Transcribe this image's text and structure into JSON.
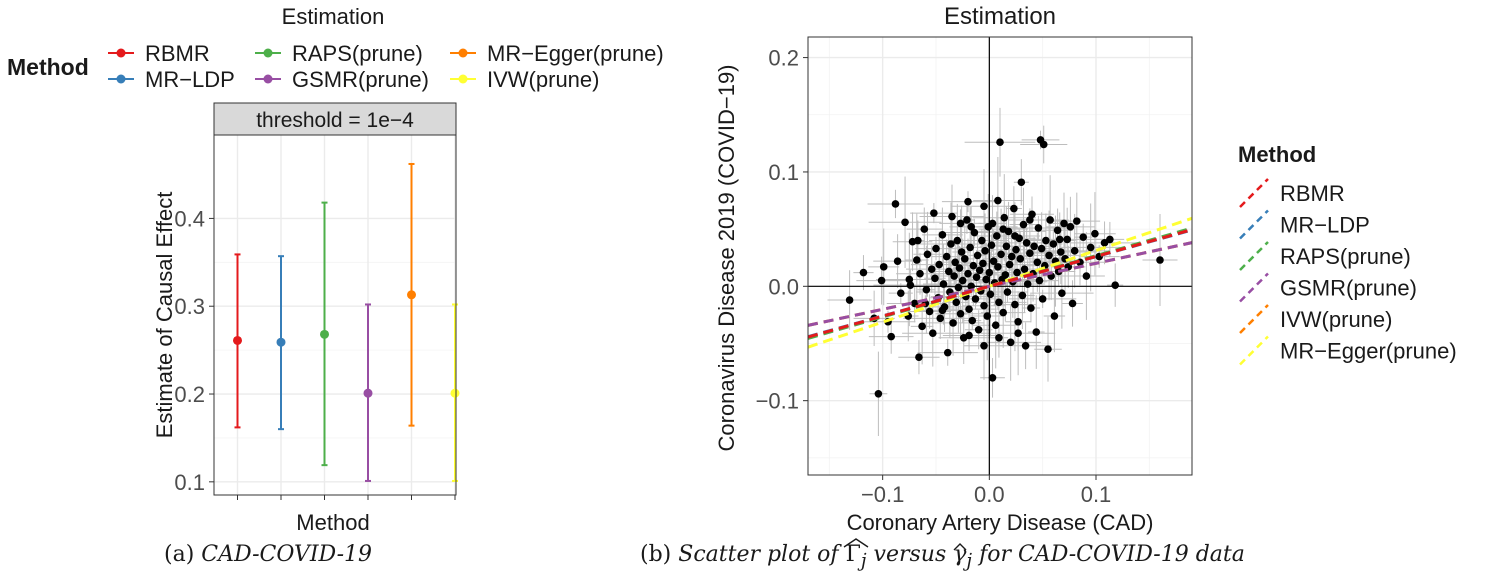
{
  "chart_data": [
    {
      "type": "errorbar",
      "title": "Estimation",
      "facet_label": "threshold = 1e−4",
      "ylabel": "Estimate of Causal Effect",
      "xlabel": "Method",
      "ylim": [
        0.085,
        0.495
      ],
      "yticks": [
        0.1,
        0.2,
        0.3,
        0.4
      ],
      "yticklabels": [
        "0.1",
        "0.2",
        "0.3",
        "0.4"
      ],
      "grid": true,
      "legend": {
        "title": "Method",
        "placement": "top",
        "entries": [
          {
            "label": "RBMR",
            "color": "#e41a1c"
          },
          {
            "label": "MR−LDP",
            "color": "#377eb8"
          },
          {
            "label": "RAPS(prune)",
            "color": "#4daf4a"
          },
          {
            "label": "GSMR(prune)",
            "color": "#984ea3"
          },
          {
            "label": "MR−Egger(prune)",
            "color": "#ff7f00"
          },
          {
            "label": "IVW(prune)",
            "color": "#ffff33"
          }
        ]
      },
      "points": [
        {
          "method": "RBMR",
          "estimate": 0.261,
          "lower": 0.162,
          "upper": 0.359,
          "color": "#e41a1c"
        },
        {
          "method": "MR−LDP",
          "estimate": 0.259,
          "lower": 0.16,
          "upper": 0.357,
          "color": "#377eb8"
        },
        {
          "method": "RAPS(prune)",
          "estimate": 0.268,
          "lower": 0.119,
          "upper": 0.418,
          "color": "#4daf4a"
        },
        {
          "method": "GSMR(prune)",
          "estimate": 0.201,
          "lower": 0.101,
          "upper": 0.302,
          "color": "#984ea3"
        },
        {
          "method": "MR−Egger(prune)",
          "estimate": 0.313,
          "lower": 0.164,
          "upper": 0.462,
          "color": "#ff7f00"
        },
        {
          "method": "IVW(prune)",
          "estimate": 0.201,
          "lower": 0.101,
          "upper": 0.302,
          "color": "#ffff33"
        }
      ]
    },
    {
      "type": "scatter",
      "title": "Estimation",
      "xlabel": "Coronary Artery Disease (CAD)",
      "ylabel": "Coronavirus Disease 2019 (COVID−19)",
      "xlim": [
        -0.17,
        0.19
      ],
      "ylim": [
        -0.165,
        0.218
      ],
      "xticks": [
        -0.1,
        0.0,
        0.1
      ],
      "xticklabels": [
        "−0.1",
        "0.0",
        "0.1"
      ],
      "yticks": [
        -0.1,
        0.0,
        0.1,
        0.2
      ],
      "yticklabels": [
        "−0.1",
        "0.0",
        "0.1",
        "0.2"
      ],
      "grid": true,
      "legend": {
        "title": "Method",
        "placement": "right"
      },
      "lines": [
        {
          "name": "RBMR",
          "slope": 0.261,
          "color": "#e41a1c"
        },
        {
          "name": "MR−LDP",
          "slope": 0.259,
          "color": "#377eb8"
        },
        {
          "name": "RAPS(prune)",
          "slope": 0.268,
          "color": "#4daf4a"
        },
        {
          "name": "GSMR(prune)",
          "slope": 0.201,
          "color": "#984ea3"
        },
        {
          "name": "IVW(prune)",
          "slope": 0.201,
          "intercept": 0.0,
          "color": "#ff7f00"
        },
        {
          "name": "MR−Egger(prune)",
          "slope": 0.313,
          "color": "#ffff33"
        }
      ],
      "points": [
        [
          -0.131,
          -0.012
        ],
        [
          -0.118,
          0.012
        ],
        [
          -0.108,
          -0.028
        ],
        [
          -0.104,
          -0.094
        ],
        [
          -0.101,
          0.005
        ],
        [
          -0.099,
          0.017
        ],
        [
          -0.095,
          -0.031
        ],
        [
          -0.092,
          -0.044
        ],
        [
          -0.088,
          0.072
        ],
        [
          -0.086,
          0.022
        ],
        [
          -0.083,
          -0.006
        ],
        [
          -0.079,
          0.056
        ],
        [
          -0.076,
          -0.026
        ],
        [
          -0.074,
          0.001
        ],
        [
          -0.072,
          0.039
        ],
        [
          -0.07,
          -0.015
        ],
        [
          -0.068,
          0.023
        ],
        [
          -0.066,
          -0.062
        ],
        [
          -0.065,
          0.011
        ],
        [
          -0.063,
          -0.035
        ],
        [
          -0.061,
          0.05
        ],
        [
          -0.059,
          -0.003
        ],
        [
          -0.058,
          0.028
        ],
        [
          -0.056,
          -0.022
        ],
        [
          -0.054,
          0.015
        ],
        [
          -0.053,
          -0.041
        ],
        [
          -0.051,
          0.007
        ],
        [
          -0.05,
          0.033
        ],
        [
          -0.048,
          -0.01
        ],
        [
          -0.047,
          0.019
        ],
        [
          -0.046,
          -0.028
        ],
        [
          -0.044,
          0.045
        ],
        [
          -0.043,
          0.002
        ],
        [
          -0.042,
          -0.018
        ],
        [
          -0.04,
          0.026
        ],
        [
          -0.039,
          -0.058
        ],
        [
          -0.038,
          0.013
        ],
        [
          -0.037,
          -0.005
        ],
        [
          -0.036,
          0.037
        ],
        [
          -0.034,
          -0.032
        ],
        [
          -0.033,
          0.009
        ],
        [
          -0.032,
          0.021
        ],
        [
          -0.031,
          -0.014
        ],
        [
          -0.03,
          0.04
        ],
        [
          -0.029,
          -0.001
        ],
        [
          -0.028,
          0.016
        ],
        [
          -0.027,
          -0.024
        ],
        [
          -0.026,
          0.03
        ],
        [
          -0.025,
          0.005
        ],
        [
          -0.024,
          -0.045
        ],
        [
          -0.023,
          0.024
        ],
        [
          -0.022,
          -0.009
        ],
        [
          -0.021,
          0.058
        ],
        [
          -0.02,
          0.011
        ],
        [
          -0.019,
          -0.02
        ],
        [
          -0.018,
          0.034
        ],
        [
          -0.017,
          0.0
        ],
        [
          -0.016,
          -0.03
        ],
        [
          -0.015,
          0.018
        ],
        [
          -0.014,
          0.047
        ],
        [
          -0.013,
          -0.011
        ],
        [
          -0.012,
          0.008
        ],
        [
          -0.011,
          0.027
        ],
        [
          -0.01,
          -0.038
        ],
        [
          -0.009,
          0.014
        ],
        [
          -0.008,
          -0.004
        ],
        [
          -0.007,
          0.04
        ],
        [
          -0.006,
          0.02
        ],
        [
          -0.005,
          -0.017
        ],
        [
          -0.004,
          0.031
        ],
        [
          -0.003,
          0.006
        ],
        [
          -0.002,
          -0.026
        ],
        [
          -0.001,
          0.052
        ],
        [
          0.0,
          0.012
        ],
        [
          0.001,
          -0.007
        ],
        [
          0.002,
          0.036
        ],
        [
          0.003,
          -0.08
        ],
        [
          0.004,
          0.022
        ],
        [
          0.005,
          0.003
        ],
        [
          0.006,
          -0.034
        ],
        [
          0.007,
          0.044
        ],
        [
          0.008,
          0.017
        ],
        [
          0.009,
          -0.014
        ],
        [
          0.01,
          0.126
        ],
        [
          0.011,
          0.028
        ],
        [
          0.012,
          0.006
        ],
        [
          0.013,
          -0.023
        ],
        [
          0.014,
          0.06
        ],
        [
          0.015,
          0.01
        ],
        [
          0.016,
          0.035
        ],
        [
          0.017,
          -0.005
        ],
        [
          0.018,
          0.048
        ],
        [
          0.019,
          0.019
        ],
        [
          0.02,
          -0.049
        ],
        [
          0.021,
          0.026
        ],
        [
          0.022,
          0.004
        ],
        [
          0.023,
          0.068
        ],
        [
          0.024,
          -0.016
        ],
        [
          0.025,
          0.032
        ],
        [
          0.026,
          0.012
        ],
        [
          0.027,
          -0.031
        ],
        [
          0.028,
          0.042
        ],
        [
          0.029,
          0.024
        ],
        [
          0.03,
          0.091
        ],
        [
          0.031,
          -0.008
        ],
        [
          0.032,
          0.054
        ],
        [
          0.033,
          0.015
        ],
        [
          0.034,
          -0.052
        ],
        [
          0.035,
          0.038
        ],
        [
          0.036,
          0.002
        ],
        [
          0.038,
          0.029
        ],
        [
          0.039,
          -0.019
        ],
        [
          0.04,
          0.063
        ],
        [
          0.041,
          0.011
        ],
        [
          0.042,
          0.035
        ],
        [
          0.044,
          -0.04
        ],
        [
          0.045,
          0.021
        ],
        [
          0.046,
          0.051
        ],
        [
          0.047,
          0.005
        ],
        [
          0.048,
          0.128
        ],
        [
          0.049,
          0.033
        ],
        [
          0.05,
          -0.011
        ],
        [
          0.051,
          0.124
        ],
        [
          0.052,
          0.018
        ],
        [
          0.053,
          0.04
        ],
        [
          0.055,
          -0.055
        ],
        [
          0.056,
          0.027
        ],
        [
          0.057,
          0.058
        ],
        [
          0.058,
          0.009
        ],
        [
          0.06,
          0.037
        ],
        [
          0.061,
          -0.026
        ],
        [
          0.062,
          0.022
        ],
        [
          0.064,
          0.049
        ],
        [
          0.065,
          0.013
        ],
        [
          0.067,
          0.03
        ],
        [
          0.068,
          -0.006
        ],
        [
          0.07,
          0.055
        ],
        [
          0.071,
          0.024
        ],
        [
          0.073,
          0.041
        ],
        [
          0.074,
          0.017
        ],
        [
          0.076,
          0.052
        ],
        [
          0.078,
          -0.015
        ],
        [
          0.08,
          0.031
        ],
        [
          0.082,
          0.057
        ],
        [
          0.085,
          0.021
        ],
        [
          0.088,
          0.043
        ],
        [
          0.091,
          0.009
        ],
        [
          0.095,
          0.034
        ],
        [
          0.099,
          0.046
        ],
        [
          0.103,
          0.026
        ],
        [
          0.108,
          0.038
        ],
        [
          0.113,
          0.041
        ],
        [
          0.118,
          0.001
        ],
        [
          0.16,
          0.023
        ],
        [
          -0.035,
          0.061
        ],
        [
          -0.052,
          0.064
        ],
        [
          -0.027,
          0.055
        ],
        [
          -0.017,
          0.052
        ],
        [
          0.003,
          0.055
        ],
        [
          0.013,
          0.05
        ],
        [
          0.024,
          0.044
        ],
        [
          0.038,
          0.058
        ],
        [
          0.066,
          0.041
        ],
        [
          -0.044,
          -0.021
        ],
        [
          -0.019,
          -0.043
        ],
        [
          0.009,
          -0.045
        ],
        [
          -0.005,
          -0.052
        ],
        [
          0.027,
          -0.041
        ],
        [
          -0.06,
          -0.015
        ],
        [
          -0.075,
          0.006
        ],
        [
          -0.005,
          0.07
        ],
        [
          0.008,
          0.075
        ],
        [
          -0.067,
          0.04
        ],
        [
          -0.02,
          0.074
        ]
      ]
    }
  ],
  "captions": {
    "left_label": "(a)",
    "left_text": "CAD-COVID-19",
    "right_label": "(b)",
    "right_pre": "Scatter plot of",
    "right_sym1": "Γ",
    "right_sub1": "j",
    "right_mid": "versus",
    "right_sym2": "γ",
    "right_sub2": "j",
    "right_post": "for CAD-COVID-19 data"
  }
}
